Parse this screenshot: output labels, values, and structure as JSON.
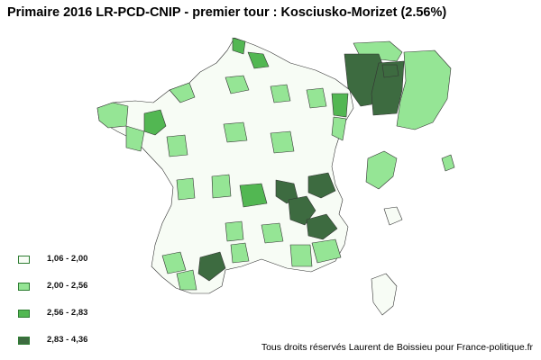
{
  "title": "Primaire 2016 LR-PCD-CNIP - premier tour : Kosciusko-Morizet (2.56%)",
  "legend": [
    {
      "label": "1,06 - 2,00",
      "color": "#f7fcf5"
    },
    {
      "label": "2,00 - 2,56",
      "color": "#95e595"
    },
    {
      "label": "2,56 - 2,83",
      "color": "#52b752"
    },
    {
      "label": "2,83 - 4,36",
      "color": "#3d6b40"
    }
  ],
  "credit": "Tous droits réservés Laurent de Boissieu pour France-politique.fr"
}
